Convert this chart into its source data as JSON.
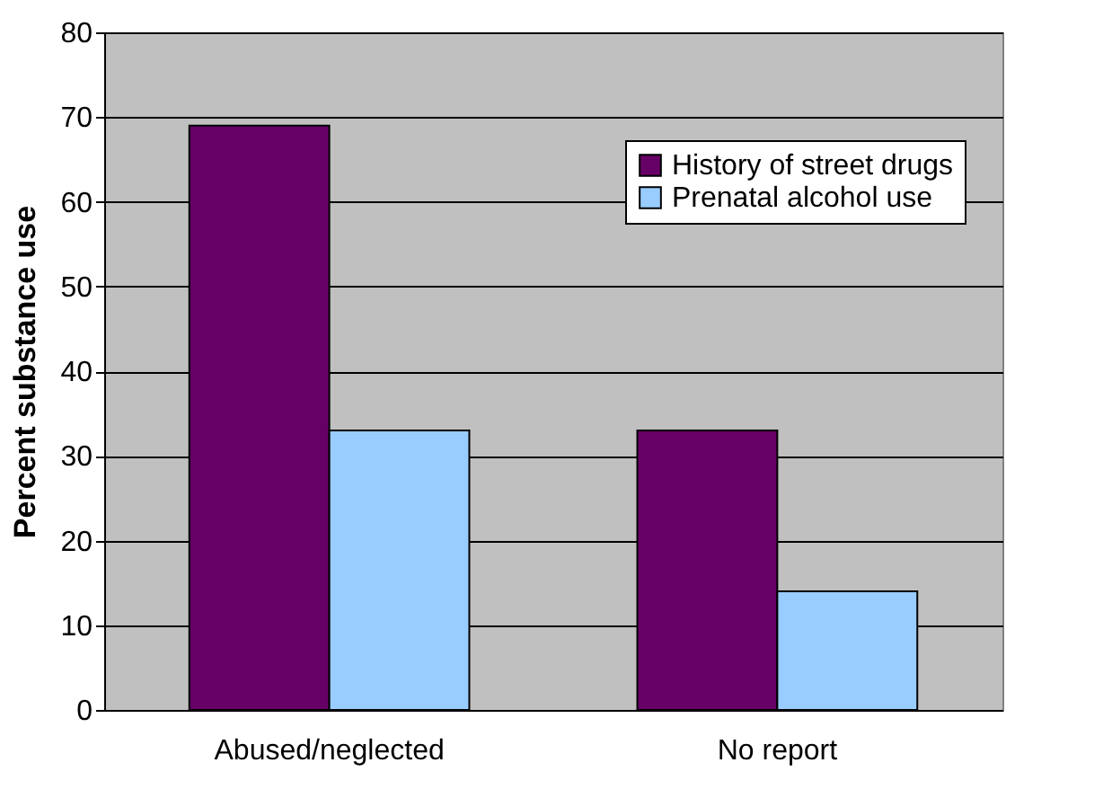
{
  "chart_data": {
    "type": "bar",
    "ylabel": "Percent substance use",
    "categories": [
      "Abused/neglected",
      "No report"
    ],
    "series": [
      {
        "name": "History of street drugs",
        "color": "#660066",
        "values": [
          69,
          33
        ]
      },
      {
        "name": "Prenatal alcohol use",
        "color": "#99ccff",
        "values": [
          33,
          14
        ]
      }
    ],
    "ylim": [
      0,
      80
    ],
    "yticks": [
      0,
      10,
      20,
      30,
      40,
      50,
      60,
      70,
      80
    ],
    "grid": "y",
    "legend": "top right"
  }
}
